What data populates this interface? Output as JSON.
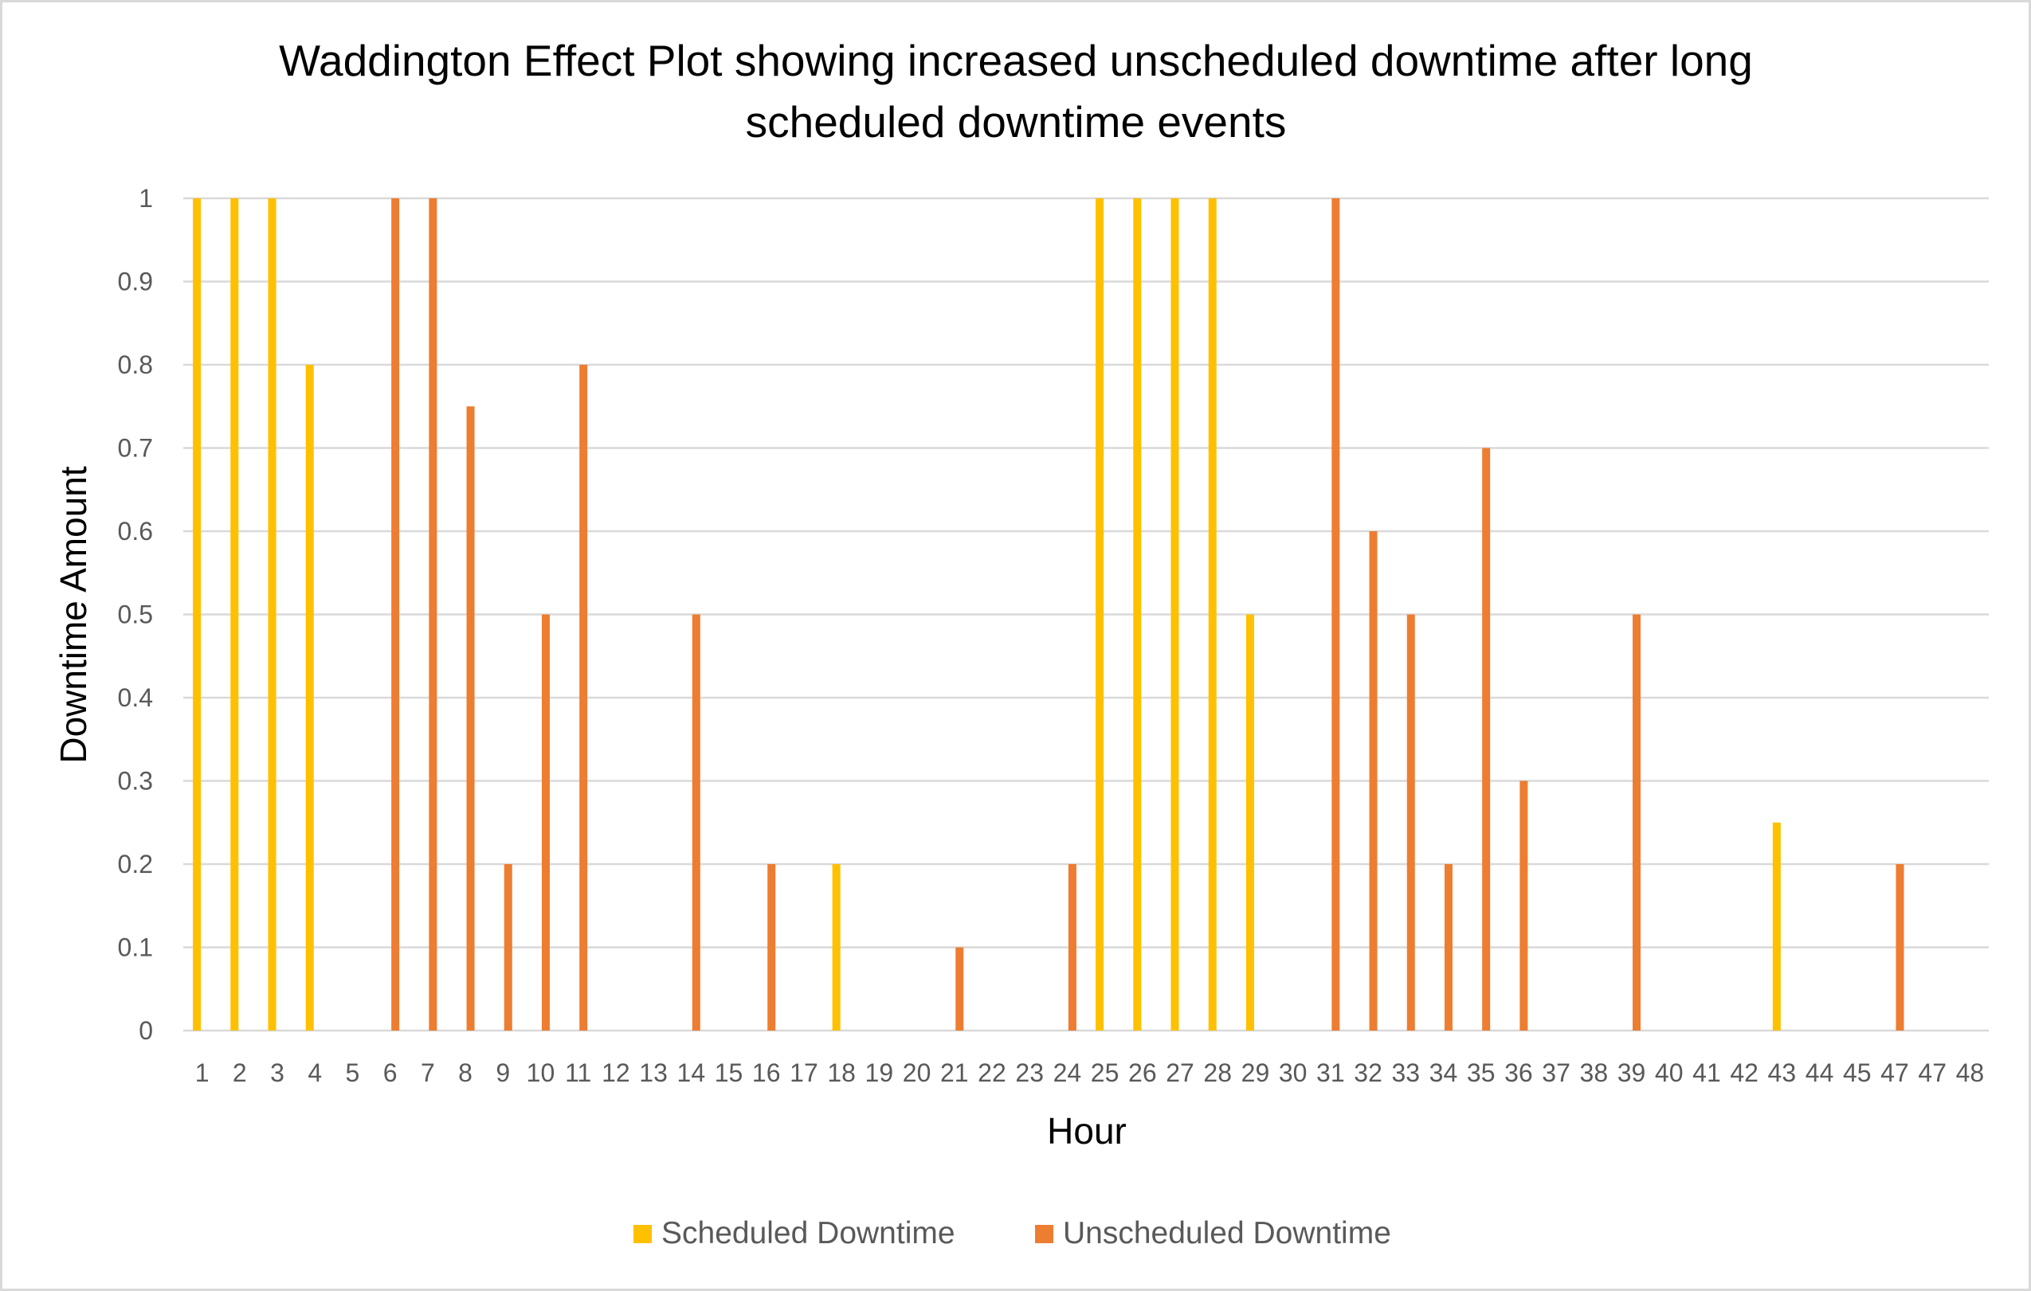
{
  "chart_data": {
    "type": "bar",
    "title_lines": [
      "Waddington Effect Plot showing increased unscheduled downtime after long",
      "scheduled downtime events"
    ],
    "xlabel": "Hour",
    "ylabel": "Downtime Amount",
    "categories": [
      "1",
      "2",
      "3",
      "4",
      "5",
      "6",
      "7",
      "8",
      "9",
      "10",
      "11",
      "12",
      "13",
      "14",
      "15",
      "16",
      "17",
      "18",
      "19",
      "20",
      "21",
      "22",
      "23",
      "24",
      "25",
      "26",
      "27",
      "28",
      "29",
      "30",
      "31",
      "32",
      "33",
      "34",
      "35",
      "36",
      "37",
      "38",
      "39",
      "40",
      "41",
      "42",
      "43",
      "44",
      "45",
      "47",
      "47",
      "48"
    ],
    "ylim": [
      0,
      1
    ],
    "yticks": [
      "0",
      "0.1",
      "0.2",
      "0.3",
      "0.4",
      "0.5",
      "0.6",
      "0.7",
      "0.8",
      "0.9",
      "1"
    ],
    "grid": true,
    "legend_position": "bottom",
    "series": [
      {
        "name": "Scheduled Downtime",
        "color": "#FFC000",
        "values": [
          1,
          1,
          1,
          0.8,
          0,
          0,
          0,
          0,
          0,
          0,
          0,
          0,
          0,
          0,
          0,
          0,
          0,
          0.2,
          0,
          0,
          0,
          0,
          0,
          0,
          1,
          1,
          1,
          1,
          0.5,
          0,
          0,
          0,
          0,
          0,
          0,
          0,
          0,
          0,
          0,
          0,
          0,
          0,
          0.25,
          0,
          0,
          0,
          0,
          0
        ]
      },
      {
        "name": "Unscheduled Downtime",
        "color": "#ED7D31",
        "values": [
          0,
          0,
          0,
          0,
          0,
          1,
          1,
          0.75,
          0.2,
          0.5,
          0.8,
          0,
          0,
          0.5,
          0,
          0.2,
          0,
          0,
          0,
          0,
          0.1,
          0,
          0,
          0.2,
          0,
          0,
          0,
          0,
          0,
          0,
          1,
          0.6,
          0.5,
          0.2,
          0.7,
          0.3,
          0,
          0,
          0.5,
          0,
          0,
          0,
          0,
          0,
          0,
          0.2,
          0,
          0
        ]
      }
    ]
  }
}
